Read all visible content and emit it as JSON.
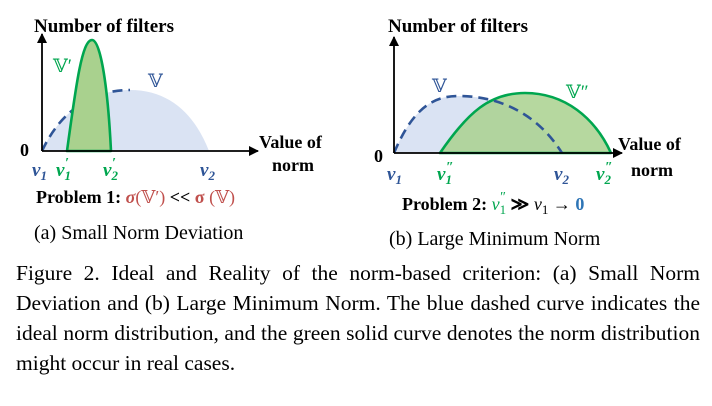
{
  "panel_a": {
    "y_axis_title": "Number of filters",
    "x_axis_title_line1": "Value of",
    "x_axis_title_line2": "norm",
    "origin": "0",
    "ticks": {
      "v1": "v",
      "v1_sub": "1",
      "v1p": "v",
      "v1p_sub": "1",
      "v1p_sup": "′",
      "v2p": "v",
      "v2p_sub": "2",
      "v2p_sup": "′",
      "v2": "v",
      "v2_sub": "2"
    },
    "set_ideal": "𝕍",
    "set_real": "𝕍′",
    "problem": {
      "prefix": "Problem 1: ",
      "sigma1": "σ",
      "arg1": "(𝕍′)",
      "rel": " << ",
      "sigma2": "σ",
      "arg2": " (𝕍)"
    },
    "subcaption": "(a) Small Norm Deviation"
  },
  "panel_b": {
    "y_axis_title": "Number of filters",
    "x_axis_title_line1": "Value of",
    "x_axis_title_line2": "norm",
    "origin": "0",
    "ticks": {
      "v1": "v",
      "v1_sub": "1",
      "v1pp": "v",
      "v1pp_sub": "1",
      "v1pp_sup": "″",
      "v2": "v",
      "v2_sub": "2",
      "v2pp": "v",
      "v2pp_sub": "2",
      "v2pp_sup": "″"
    },
    "set_ideal": "𝕍",
    "set_real": "𝕍″",
    "problem": {
      "prefix": "Problem 2: ",
      "lhs": "v",
      "lhs_sub": "1",
      "lhs_sup": "″",
      "rel": " ≫ ",
      "rhs": "v",
      "rhs_sub": "1",
      "arrow": " → ",
      "zero": "0"
    },
    "subcaption": "(b) Large Minimum Norm"
  },
  "caption": "Figure 2.  Ideal and Reality of the norm-based criterion: (a) Small Norm Deviation and (b) Large Minimum Norm. The blue dashed curve indicates the ideal norm distribution, and the green solid curve denotes the norm distribution might occur in real cases.",
  "colors": {
    "ideal_fill": "#dae3f3",
    "ideal_stroke": "#2f5597",
    "real_fill": "#a9d18e",
    "real_stroke": "#00a64f",
    "label_blue": "#2f5597",
    "label_green": "#00a64f",
    "sigma_red": "#c0504d",
    "zero_blue": "#2e75b6"
  },
  "icons": [
    "axis-arrow-icon"
  ]
}
